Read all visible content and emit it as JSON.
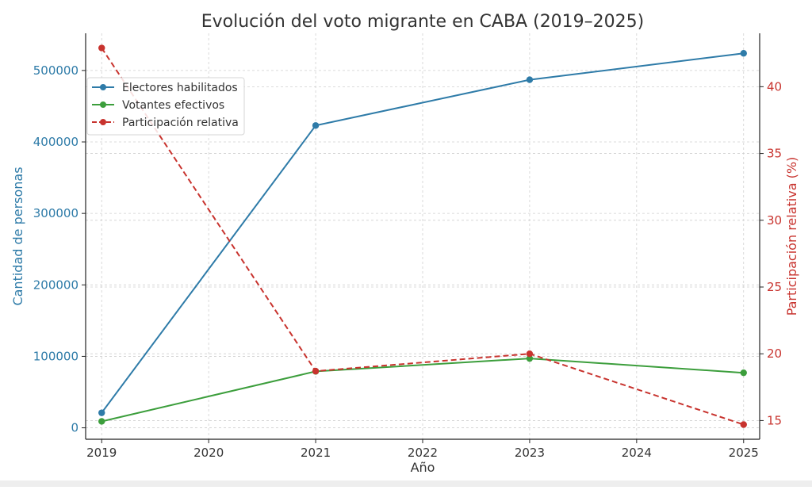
{
  "chart_data": {
    "type": "line",
    "title": "Evolución del voto migrante en CABA (2019–2025)",
    "xlabel": "Año",
    "ylabel_left": "Cantidad de personas",
    "ylabel_right": "Participación relativa (%)",
    "x_ticks": [
      2019,
      2020,
      2021,
      2022,
      2023,
      2024,
      2025
    ],
    "x_range": [
      2018.85,
      2025.15
    ],
    "y_left_range": [
      -16000,
      552000
    ],
    "y_left_ticks": [
      0,
      100000,
      200000,
      300000,
      400000,
      500000
    ],
    "y_right_range": [
      13.6,
      44.0
    ],
    "y_right_ticks": [
      15,
      20,
      25,
      30,
      35,
      40
    ],
    "grid": true,
    "legend_position": "upper-left",
    "series": [
      {
        "name": "Electores habilitados",
        "axis": "left",
        "style": "solid",
        "color": "#2e7ba8",
        "x": [
          2019,
          2021,
          2023,
          2025
        ],
        "values": [
          21000,
          423000,
          487000,
          524000
        ]
      },
      {
        "name": "Votantes efectivos",
        "axis": "left",
        "style": "solid",
        "color": "#3c9e3c",
        "x": [
          2019,
          2021,
          2023,
          2025
        ],
        "values": [
          9000,
          79000,
          97000,
          77000
        ]
      },
      {
        "name": "Participación relativa",
        "axis": "right",
        "style": "dashed",
        "color": "#c8332e",
        "x": [
          2019,
          2021,
          2023,
          2025
        ],
        "values": [
          42.9,
          18.7,
          20.0,
          14.7
        ]
      }
    ],
    "colors": {
      "left_axis": "#2e7ba8",
      "right_axis": "#c8332e",
      "grid": "#cfcfcf",
      "text": "#333333"
    }
  }
}
